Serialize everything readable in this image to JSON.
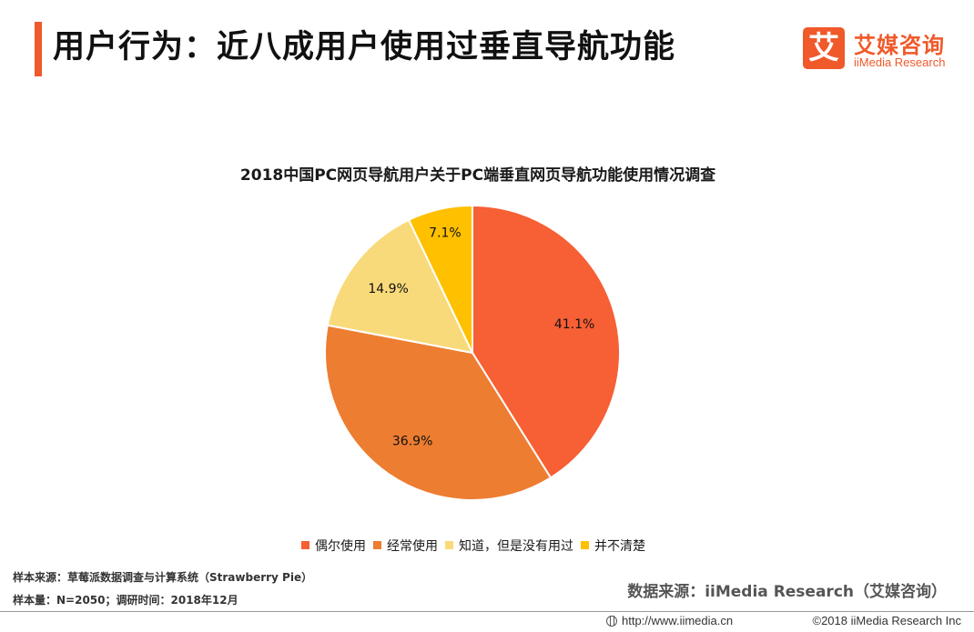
{
  "header": {
    "title": "用户行为：近八成用户使用过垂直导航功能",
    "logo_mark": "艾",
    "logo_cn": "艾媒咨询",
    "logo_en": "iiMedia Research"
  },
  "chart_data": {
    "type": "pie",
    "title": "2018中国PC网页导航用户关于PC端垂直网页导航功能使用情况调查",
    "categories": [
      "偶尔使用",
      "经常使用",
      "知道，但是没有用过",
      "并不清楚"
    ],
    "values": [
      41.1,
      36.9,
      14.9,
      7.1
    ],
    "labels": [
      "41.1%",
      "36.9%",
      "14.9%",
      "7.1%"
    ],
    "colors": [
      "#f75f34",
      "#ed7d31",
      "#f9da7a",
      "#ffc000"
    ],
    "legend_position": "bottom",
    "start_angle": "12 o'clock",
    "direction": "clockwise"
  },
  "source": {
    "sample_source": "样本来源：草莓派数据调查与计算系统（Strawberry Pie）",
    "sample_info": "样本量：N=2050；调研时间：2018年12月",
    "data_source": "数据来源：iiMedia Research（艾媒咨询）"
  },
  "footer": {
    "url": "http://www.iimedia.cn",
    "copyright": "©2018  iiMedia Research  Inc"
  }
}
